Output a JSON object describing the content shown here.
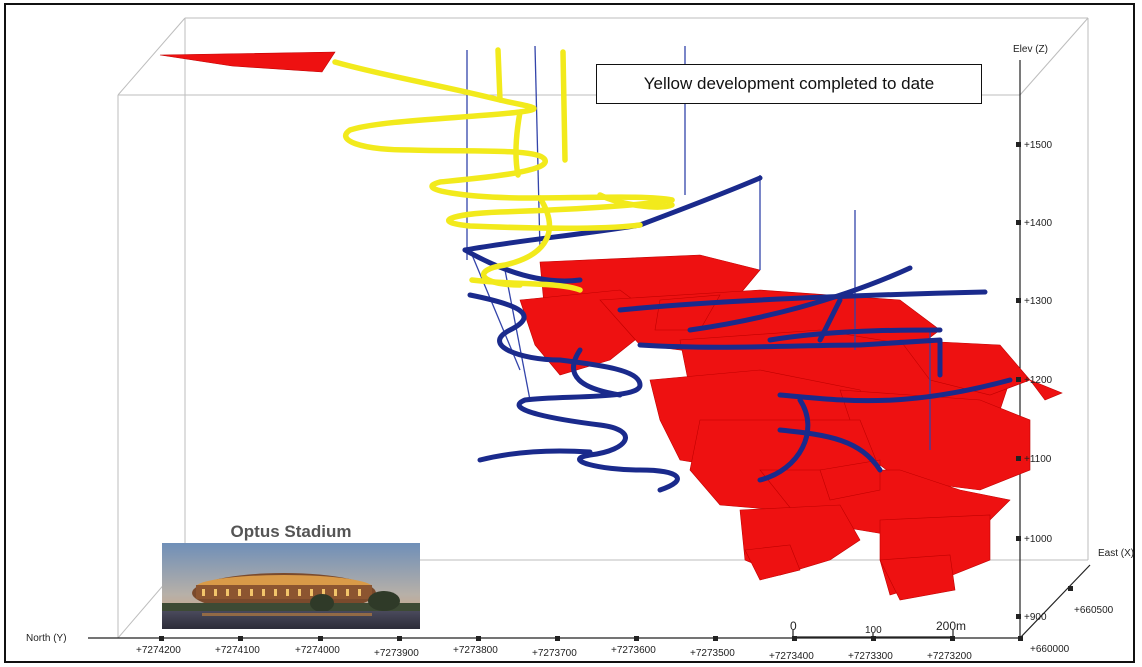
{
  "callout": {
    "text": "Yellow development completed to date"
  },
  "inset": {
    "title": "Optus Stadium"
  },
  "axes": {
    "z": {
      "label": "Elev (Z)",
      "ticks": [
        "+1500",
        "+1400",
        "+1300",
        "+1200",
        "+1100",
        "+1000",
        "+900"
      ]
    },
    "y": {
      "label": "North (Y)",
      "ticks": [
        "+7274200",
        "+7274100",
        "+7274000",
        "+7273900",
        "+7273800",
        "+7273700",
        "+7273600",
        "+7273500",
        "+7273400",
        "+7273300",
        "+7273200"
      ]
    },
    "x": {
      "label": "East (X)",
      "ticks": [
        "+660500",
        "+660000"
      ]
    }
  },
  "scale_bar": {
    "labels": [
      "0",
      "100",
      "200m"
    ]
  },
  "colors": {
    "completed": "#f2ea1c",
    "planned": "#1a2a8c",
    "stopes": "#ee1111",
    "box": "#bfbfbf"
  }
}
